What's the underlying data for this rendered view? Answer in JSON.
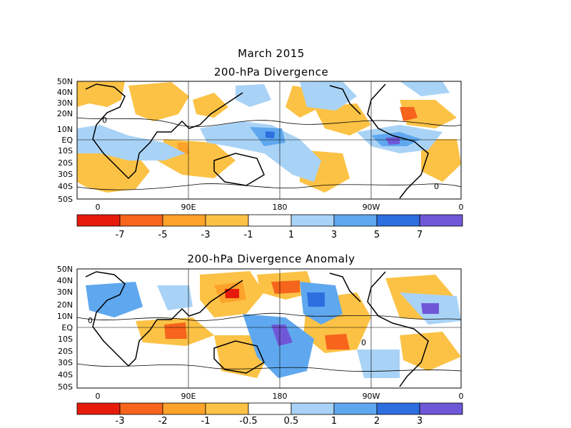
{
  "figure": {
    "title": "March 2015",
    "panel_top_title": "200-hPa Divergence",
    "panel_bottom_title": "200-hPa Divergence Anomaly"
  },
  "axes": {
    "lat_labels": [
      "50N",
      "40N",
      "30N",
      "20N",
      "10N",
      "EQ",
      "10S",
      "20S",
      "30S",
      "40S",
      "50S"
    ],
    "lon_labels": [
      "0",
      "90E",
      "180",
      "90W",
      "0"
    ]
  },
  "top_colorbar": {
    "labels": [
      "-7",
      "-5",
      "-3",
      "-1",
      "1",
      "3",
      "5",
      "7"
    ],
    "colors": [
      "#e61b0c",
      "#f7641c",
      "#fda22a",
      "#fcc246",
      "#ffffff",
      "#a9d3f6",
      "#5fa8ef",
      "#2d6ee0",
      "#6f58d8"
    ]
  },
  "bottom_colorbar": {
    "labels": [
      "-3",
      "-2",
      "-1",
      "-0.5",
      "0.5",
      "1",
      "2",
      "3"
    ],
    "colors": [
      "#e61b0c",
      "#f7641c",
      "#fda22a",
      "#fcc246",
      "#ffffff",
      "#a9d3f6",
      "#5fa8ef",
      "#2d6ee0",
      "#6f58d8"
    ]
  },
  "contour_label": "0"
}
